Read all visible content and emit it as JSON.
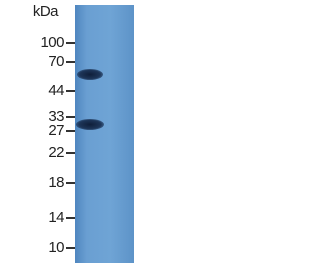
{
  "ladder": {
    "unit": "kDa",
    "markers": [
      "100",
      "70",
      "44",
      "33",
      "27",
      "22",
      "18",
      "14",
      "10"
    ]
  }
}
